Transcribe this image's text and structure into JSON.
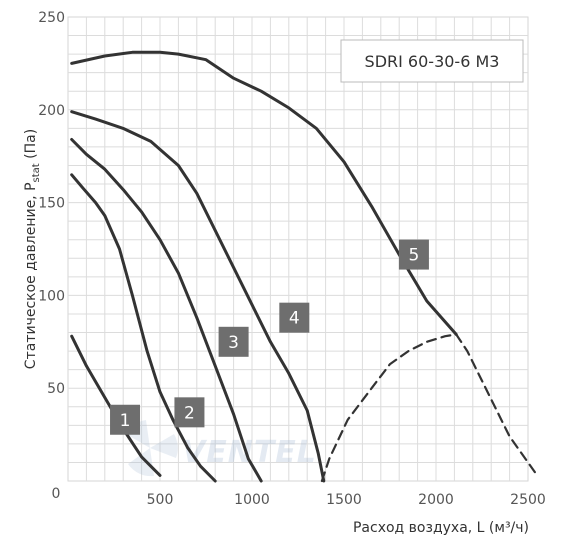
{
  "chart_data": {
    "type": "line",
    "title": "SDRI 60-30-6 M3",
    "xlabel": "Расход воздуха, L (м³/ч)",
    "ylabel_main": "Статическое давление, P",
    "ylabel_sub": "stat",
    "ylabel_unit": " (Па)",
    "xlim": [
      0,
      2500
    ],
    "ylim": [
      0,
      250
    ],
    "xticks": [
      0,
      500,
      1000,
      1500,
      2000,
      2500
    ],
    "yticks": [
      50,
      100,
      150,
      200,
      250
    ],
    "grid": true,
    "watermark": "VENTEL",
    "series": [
      {
        "name": "1",
        "label_at": [
          310,
          33
        ],
        "points": [
          [
            20,
            78
          ],
          [
            100,
            62
          ],
          [
            200,
            45
          ],
          [
            300,
            28
          ],
          [
            400,
            13
          ],
          [
            500,
            3
          ]
        ]
      },
      {
        "name": "2",
        "label_at": [
          660,
          37
        ],
        "points": [
          [
            20,
            165
          ],
          [
            80,
            158
          ],
          [
            150,
            150
          ],
          [
            200,
            143
          ],
          [
            280,
            125
          ],
          [
            350,
            100
          ],
          [
            430,
            70
          ],
          [
            500,
            48
          ],
          [
            570,
            33
          ],
          [
            650,
            18
          ],
          [
            720,
            8
          ],
          [
            800,
            0
          ]
        ]
      },
      {
        "name": "3",
        "label_at": [
          900,
          75
        ],
        "points": [
          [
            20,
            184
          ],
          [
            100,
            176
          ],
          [
            200,
            168
          ],
          [
            300,
            157
          ],
          [
            400,
            145
          ],
          [
            500,
            130
          ],
          [
            600,
            112
          ],
          [
            700,
            88
          ],
          [
            800,
            62
          ],
          [
            900,
            36
          ],
          [
            980,
            12
          ],
          [
            1050,
            0
          ]
        ]
      },
      {
        "name": "4",
        "label_at": [
          1230,
          88
        ],
        "points": [
          [
            20,
            199
          ],
          [
            150,
            195
          ],
          [
            300,
            190
          ],
          [
            450,
            183
          ],
          [
            600,
            170
          ],
          [
            700,
            155
          ],
          [
            800,
            135
          ],
          [
            900,
            115
          ],
          [
            1000,
            95
          ],
          [
            1100,
            75
          ],
          [
            1200,
            58
          ],
          [
            1300,
            38
          ],
          [
            1360,
            15
          ],
          [
            1390,
            0
          ]
        ]
      },
      {
        "name": "5",
        "label_at": [
          1880,
          122
        ],
        "points": [
          [
            20,
            225
          ],
          [
            200,
            229
          ],
          [
            350,
            231
          ],
          [
            500,
            231
          ],
          [
            600,
            230
          ],
          [
            750,
            227
          ],
          [
            900,
            217
          ],
          [
            1050,
            210
          ],
          [
            1200,
            201
          ],
          [
            1350,
            190
          ],
          [
            1500,
            172
          ],
          [
            1650,
            148
          ],
          [
            1800,
            122
          ],
          [
            1950,
            97
          ],
          [
            2110,
            79
          ]
        ]
      },
      {
        "name": "",
        "dashed": true,
        "points": [
          [
            1380,
            0
          ],
          [
            1420,
            12
          ],
          [
            1520,
            33
          ],
          [
            1650,
            50
          ],
          [
            1750,
            63
          ],
          [
            1850,
            70
          ],
          [
            1950,
            75
          ],
          [
            2050,
            78
          ],
          [
            2110,
            79
          ],
          [
            2170,
            70
          ],
          [
            2280,
            48
          ],
          [
            2400,
            24
          ],
          [
            2550,
            3
          ]
        ]
      }
    ]
  }
}
